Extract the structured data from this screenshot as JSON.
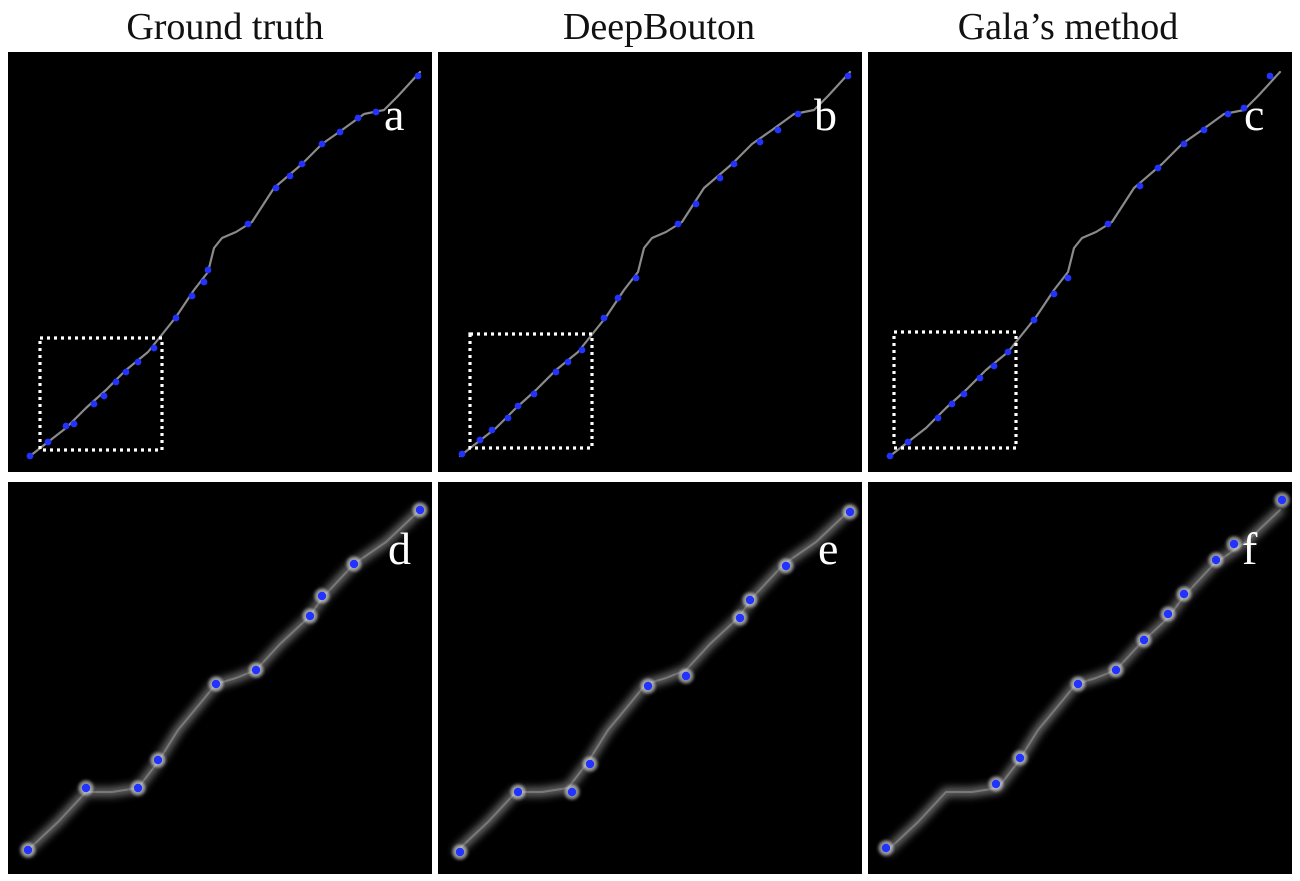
{
  "column_titles": [
    "Ground truth",
    "DeepBouton",
    "Gala’s method"
  ],
  "panel_labels": [
    "a",
    "b",
    "c",
    "d",
    "e",
    "f"
  ],
  "colors": {
    "background": "#ffffff",
    "panel": "#000000",
    "marker": "#2233ff",
    "axon": "#8a8a8a",
    "frame": "#ffffff"
  }
}
